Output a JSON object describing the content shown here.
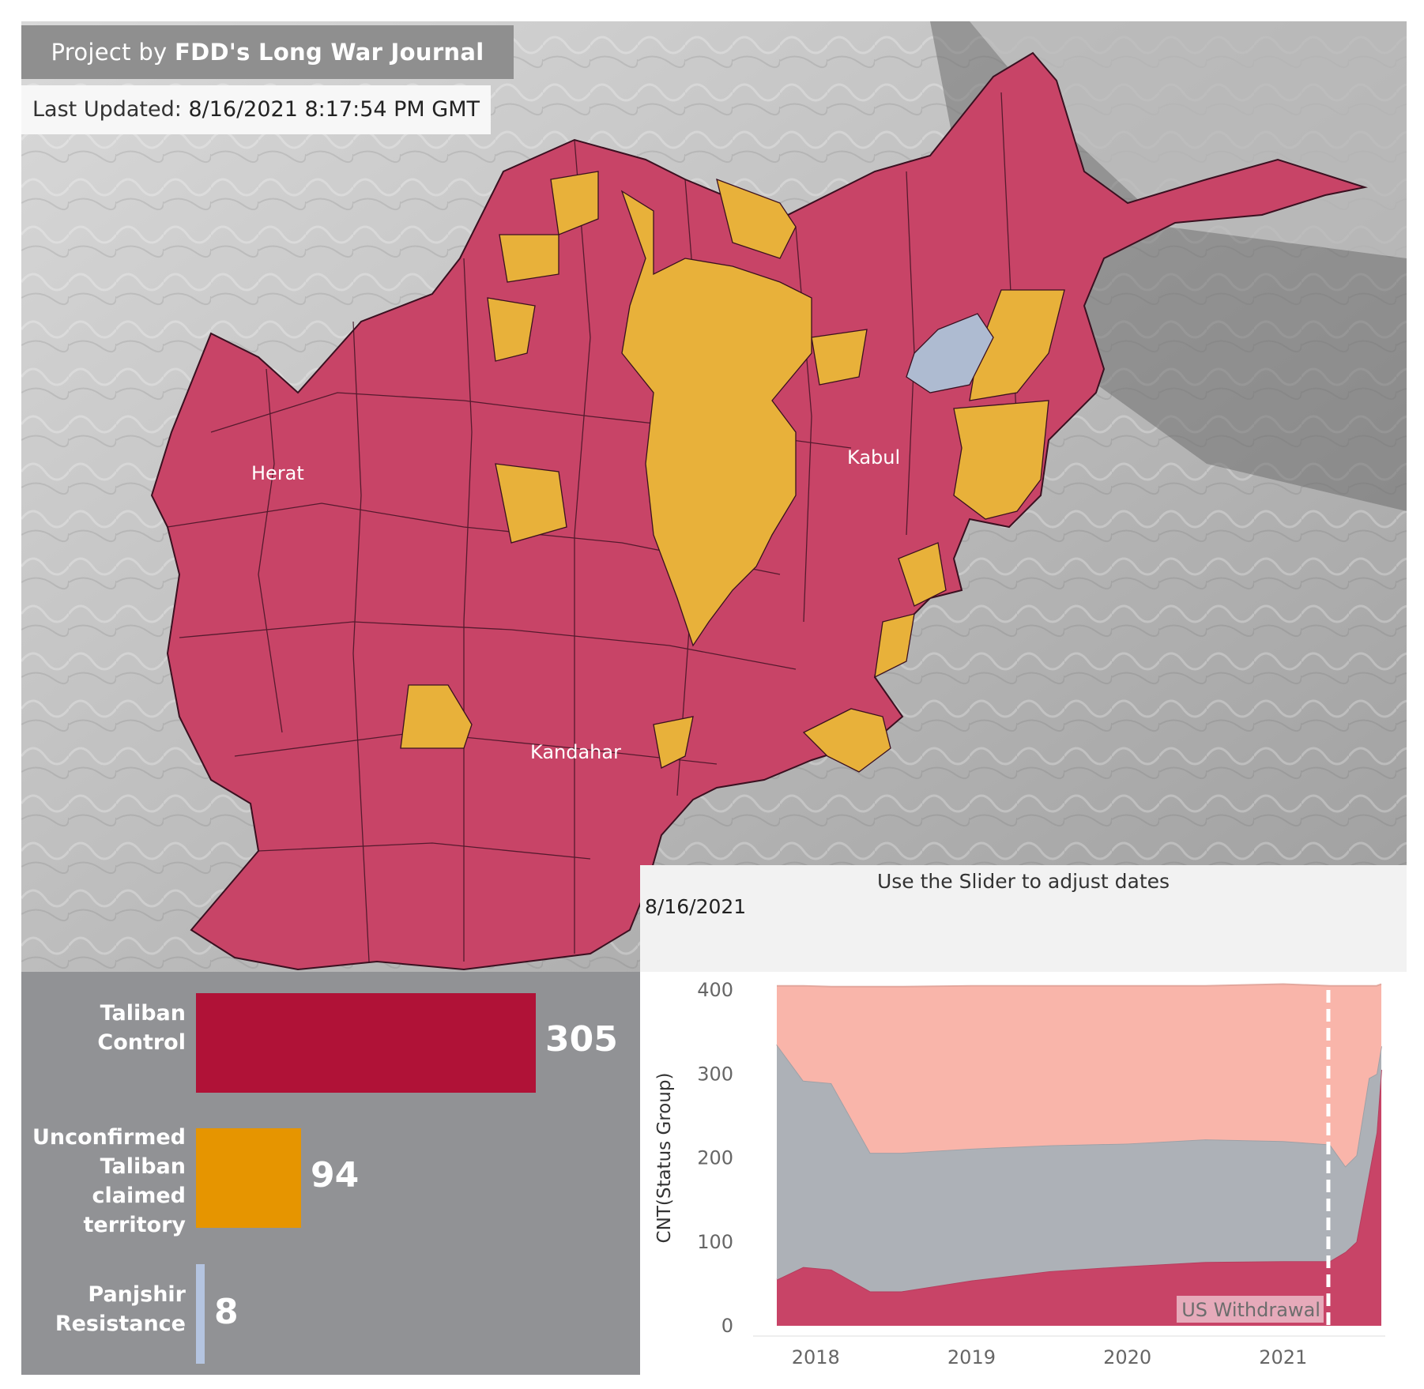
{
  "header": {
    "project_prefix": "Project by ",
    "project_name": "FDD's Long War Journal",
    "updated_label": "Last Updated: ",
    "updated_value": "8/16/2021 8:17:54 PM GMT"
  },
  "map": {
    "cities": [
      "Herat",
      "Kabul",
      "Kandahar"
    ],
    "colors": {
      "taliban": "#c84467",
      "unconfirmed": "#e8b13a",
      "resistance": "#aebbd1"
    }
  },
  "slider": {
    "label": "Use the Slider to adjust dates",
    "date": "8/16/2021"
  },
  "summary": {
    "items": [
      {
        "label_lines": [
          "Taliban",
          "Control"
        ],
        "value": "305",
        "count": 305,
        "color": "#b01237"
      },
      {
        "label_lines": [
          "Unconfirmed",
          "Taliban",
          "claimed",
          "territory"
        ],
        "value": "94",
        "count": 94,
        "color": "#e69500"
      },
      {
        "label_lines": [
          "Panjshir",
          "Resistance"
        ],
        "value": "8",
        "count": 8,
        "color": "#b4c4e0"
      }
    ]
  },
  "chart_data": {
    "type": "area",
    "ylabel": "CNT(Status Group)",
    "xlabel": "",
    "ylim": [
      0,
      400
    ],
    "y_ticks": [
      "400",
      "300",
      "200",
      "100",
      "0"
    ],
    "x_ticks": [
      "2018",
      "2019",
      "2020",
      "2021"
    ],
    "annotation": "US Withdrawal",
    "annotation_date": 2021.29,
    "x": [
      2017.75,
      2017.92,
      2018.1,
      2018.35,
      2018.55,
      2019.0,
      2019.5,
      2020.0,
      2020.5,
      2021.0,
      2021.3,
      2021.4,
      2021.47,
      2021.55,
      2021.6,
      2021.63
    ],
    "series": [
      {
        "values": [
          55,
          70,
          67,
          41,
          41,
          54,
          65,
          71,
          76,
          77,
          77,
          88,
          100,
          180,
          230,
          305
        ],
        "color": "#c84467"
      },
      {
        "values": [
          280,
          222,
          222,
          165,
          165,
          157,
          150,
          146,
          146,
          143,
          139,
          102,
          103,
          115,
          70,
          28
        ],
        "color": "#adb1b7"
      },
      {
        "values": [
          70,
          113,
          115,
          198,
          198,
          194,
          190,
          188,
          183,
          187,
          189,
          215,
          202,
          110,
          105,
          74
        ],
        "color": "#f9b5aa"
      }
    ]
  }
}
